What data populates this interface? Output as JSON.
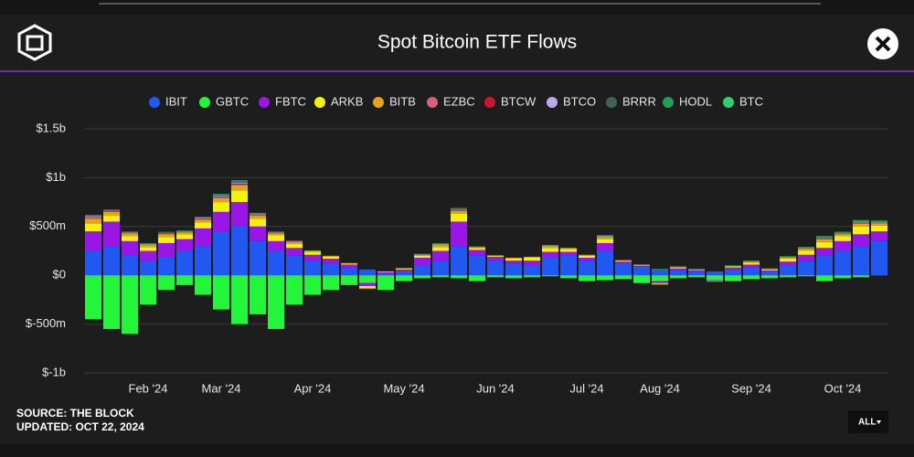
{
  "chart_data": {
    "type": "stacked_bar",
    "title": "Spot Bitcoin ETF Flows",
    "source": "SOURCE: THE BLOCK",
    "updated": "UPDATED: OCT 22, 2024",
    "categories": [
      null,
      null,
      null,
      "Feb '24",
      null,
      null,
      null,
      "Mar '24",
      null,
      null,
      null,
      null,
      "Apr '24",
      null,
      null,
      null,
      null,
      "May '24",
      null,
      null,
      null,
      null,
      "Jun '24",
      null,
      null,
      null,
      null,
      "Jul '24",
      null,
      null,
      null,
      "Aug '24",
      null,
      null,
      null,
      null,
      "Sep '24",
      null,
      null,
      null,
      null,
      "Oct '24",
      null,
      null
    ],
    "ylim": [
      -1000,
      1500
    ],
    "yticks": [
      {
        "value": -1000,
        "label": "$-1b"
      },
      {
        "value": -500,
        "label": "$-500m"
      },
      {
        "value": 0,
        "label": "$0"
      },
      {
        "value": 500,
        "label": "$500m"
      },
      {
        "value": 1000,
        "label": "$1b"
      },
      {
        "value": 1500,
        "label": "$1.5b"
      }
    ],
    "grid": true,
    "series": [
      {
        "name": "IBIT",
        "color": "#2158f2",
        "values": [
          250,
          300,
          200,
          150,
          180,
          250,
          300,
          450,
          500,
          350,
          250,
          200,
          150,
          120,
          80,
          60,
          20,
          40,
          100,
          150,
          300,
          200,
          150,
          120,
          100,
          180,
          200,
          150,
          250,
          120,
          90,
          60,
          50,
          40,
          30,
          60,
          80,
          40,
          100,
          150,
          200,
          250,
          300,
          350
        ]
      },
      {
        "name": "GBTC",
        "color": "#22f53a",
        "values": [
          -450,
          -550,
          -600,
          -300,
          -150,
          -100,
          -200,
          -350,
          -500,
          -400,
          -550,
          -300,
          -200,
          -150,
          -100,
          -80,
          -150,
          -60,
          -30,
          -20,
          -30,
          -60,
          -20,
          -30,
          -20,
          -10,
          -30,
          -60,
          -50,
          -40,
          -80,
          -60,
          -30,
          -20,
          -50,
          -60,
          -40,
          -30,
          -20,
          -10,
          -60,
          -30,
          -20,
          0
        ]
      },
      {
        "name": "FBTC",
        "color": "#9a16e6",
        "values": [
          200,
          250,
          150,
          100,
          150,
          120,
          180,
          200,
          250,
          150,
          100,
          80,
          60,
          50,
          30,
          -30,
          10,
          20,
          80,
          100,
          250,
          60,
          40,
          30,
          50,
          60,
          40,
          30,
          80,
          20,
          10,
          -20,
          20,
          10,
          -10,
          20,
          30,
          10,
          40,
          60,
          80,
          100,
          120,
          100
        ]
      },
      {
        "name": "ARKB",
        "color": "#f2f20f",
        "values": [
          80,
          60,
          50,
          40,
          60,
          50,
          60,
          100,
          120,
          80,
          60,
          40,
          30,
          20,
          10,
          -20,
          5,
          10,
          20,
          40,
          80,
          20,
          10,
          20,
          30,
          40,
          30,
          20,
          40,
          10,
          5,
          -10,
          10,
          5,
          -5,
          10,
          20,
          10,
          30,
          40,
          60,
          50,
          80,
          60
        ]
      },
      {
        "name": "BITB",
        "color": "#e3a41a",
        "values": [
          50,
          40,
          30,
          20,
          30,
          20,
          30,
          40,
          50,
          30,
          20,
          20,
          10,
          10,
          5,
          -10,
          5,
          5,
          10,
          20,
          30,
          10,
          5,
          10,
          10,
          20,
          10,
          10,
          20,
          5,
          5,
          -5,
          5,
          5,
          0,
          5,
          10,
          5,
          10,
          20,
          30,
          20,
          30,
          20
        ]
      },
      {
        "name": "EZBC",
        "color": "#d4607a",
        "values": [
          10,
          5,
          5,
          5,
          5,
          5,
          5,
          10,
          10,
          5,
          5,
          5,
          0,
          0,
          0,
          0,
          0,
          0,
          0,
          5,
          5,
          0,
          0,
          0,
          0,
          0,
          0,
          0,
          5,
          0,
          0,
          0,
          0,
          0,
          0,
          0,
          0,
          0,
          5,
          5,
          0,
          5,
          0,
          5
        ]
      },
      {
        "name": "BTCW",
        "color": "#c8182c",
        "values": [
          5,
          5,
          0,
          0,
          5,
          0,
          5,
          5,
          10,
          5,
          0,
          0,
          0,
          0,
          0,
          0,
          0,
          0,
          0,
          0,
          5,
          0,
          0,
          0,
          0,
          0,
          0,
          0,
          0,
          0,
          0,
          0,
          0,
          0,
          0,
          0,
          0,
          0,
          0,
          0,
          5,
          0,
          5,
          0
        ]
      },
      {
        "name": "BTCO",
        "color": "#b9a8ef",
        "values": [
          10,
          5,
          5,
          5,
          5,
          5,
          10,
          10,
          10,
          5,
          5,
          5,
          0,
          0,
          0,
          0,
          0,
          0,
          5,
          5,
          5,
          0,
          0,
          0,
          0,
          5,
          0,
          0,
          5,
          0,
          0,
          0,
          0,
          0,
          0,
          0,
          0,
          0,
          0,
          5,
          5,
          5,
          5,
          5
        ]
      },
      {
        "name": "BRRR",
        "color": "#3c6650",
        "values": [
          10,
          5,
          5,
          5,
          5,
          5,
          5,
          10,
          10,
          5,
          5,
          0,
          0,
          0,
          0,
          0,
          0,
          0,
          0,
          5,
          5,
          0,
          0,
          0,
          0,
          0,
          0,
          0,
          0,
          0,
          0,
          0,
          0,
          0,
          0,
          0,
          0,
          0,
          0,
          0,
          5,
          0,
          5,
          5
        ]
      },
      {
        "name": "HODL",
        "color": "#1e9f5c",
        "values": [
          5,
          5,
          5,
          5,
          5,
          5,
          5,
          10,
          15,
          10,
          5,
          5,
          5,
          0,
          0,
          0,
          0,
          0,
          5,
          5,
          10,
          5,
          0,
          0,
          0,
          5,
          0,
          0,
          5,
          0,
          0,
          0,
          0,
          0,
          0,
          0,
          5,
          0,
          5,
          5,
          10,
          10,
          15,
          10
        ]
      },
      {
        "name": "BTC",
        "color": "#2fcf6e",
        "values": [
          0,
          0,
          0,
          0,
          0,
          0,
          0,
          0,
          0,
          0,
          0,
          0,
          0,
          0,
          0,
          0,
          0,
          0,
          0,
          0,
          0,
          0,
          0,
          0,
          0,
          0,
          0,
          0,
          5,
          0,
          0,
          5,
          5,
          5,
          5,
          5,
          5,
          5,
          5,
          5,
          5,
          5,
          5,
          5
        ]
      }
    ]
  },
  "controls": {
    "range_button": "ALL"
  }
}
